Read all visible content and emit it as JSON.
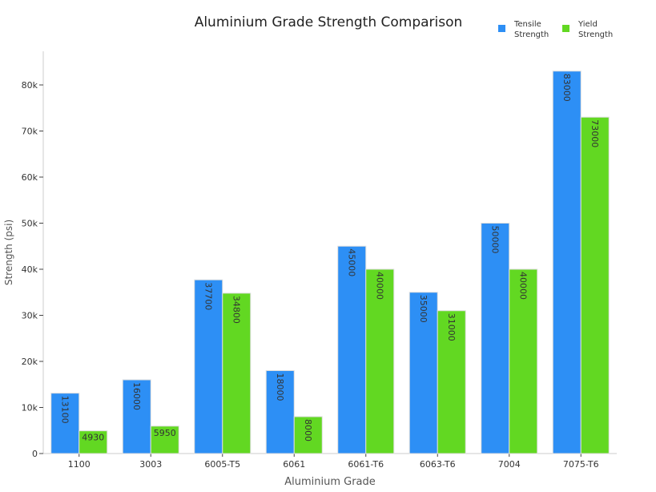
{
  "chart_data": {
    "type": "bar",
    "title": "Aluminium Grade Strength Comparison",
    "xlabel": "Aluminium Grade",
    "ylabel": "Strength (psi)",
    "categories": [
      "1100",
      "3003",
      "6005-T5",
      "6061",
      "6061-T6",
      "6063-T6",
      "7004",
      "7075-T6"
    ],
    "series": [
      {
        "name": "Tensile Strength",
        "color": "#2d8ff5",
        "values": [
          13100,
          16000,
          37700,
          18000,
          45000,
          35000,
          50000,
          83000
        ]
      },
      {
        "name": "Yield Strength",
        "color": "#62d822",
        "values": [
          4930,
          5950,
          34800,
          8000,
          40000,
          31000,
          40000,
          73000
        ]
      }
    ],
    "ylim": [
      0,
      88000
    ],
    "yticks": [
      0,
      10000,
      20000,
      30000,
      40000,
      50000,
      60000,
      70000,
      80000
    ],
    "ytick_labels": [
      "0",
      "10k",
      "20k",
      "30k",
      "40k",
      "50k",
      "60k",
      "70k",
      "80k"
    ],
    "legend": {
      "position": "top-right",
      "labels": [
        "Tensile\nStrength",
        "Yield\nStrength"
      ]
    },
    "grid": false,
    "data_labels": true
  }
}
